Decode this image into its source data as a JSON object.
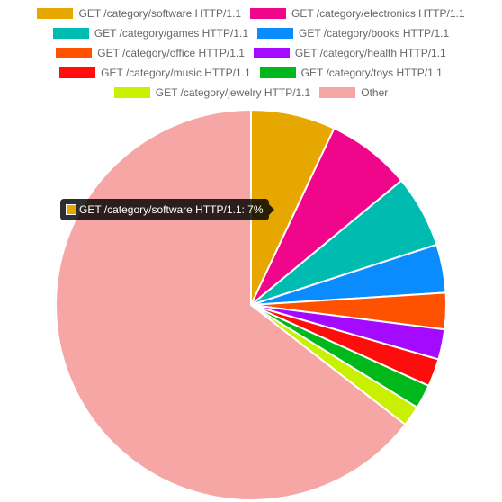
{
  "chart_data": {
    "type": "pie",
    "categories": [
      "GET /category/software HTTP/1.1",
      "GET /category/electronics HTTP/1.1",
      "GET /category/games HTTP/1.1",
      "GET /category/books HTTP/1.1",
      "GET /category/office HTTP/1.1",
      "GET /category/health HTTP/1.1",
      "GET /category/music HTTP/1.1",
      "GET /category/toys HTTP/1.1",
      "GET /category/jewelry HTTP/1.1",
      "Other"
    ],
    "values": [
      7,
      7,
      6,
      4,
      3,
      2.5,
      2.3,
      2,
      1.7,
      64.5
    ],
    "colors": [
      "#e6a800",
      "#f0068a",
      "#00bcb0",
      "#0a8cff",
      "#ff5200",
      "#a30aff",
      "#ff0d0d",
      "#00b81a",
      "#c8f000",
      "#f7a6a6"
    ],
    "legend_position": "top"
  },
  "tooltip": {
    "text": "GET /category/software HTTP/1.1: 7%",
    "color": "#e6a800"
  }
}
